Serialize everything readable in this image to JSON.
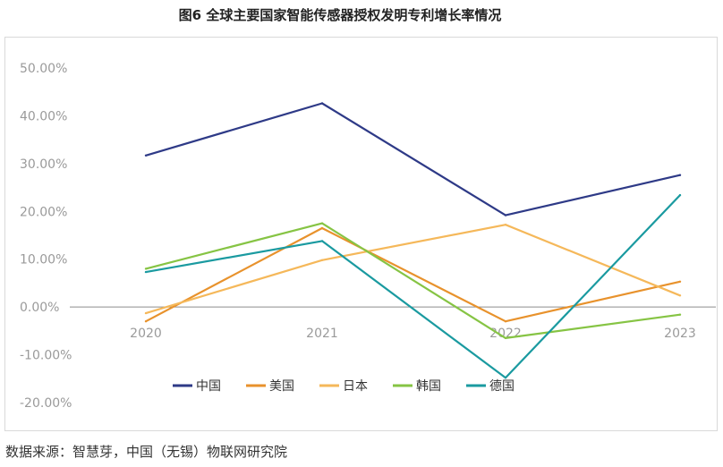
{
  "title": "图6 全球主要国家智能传感器授权发明专利增长率情况",
  "source": "数据来源：智慧芽，中国（无锡）物联网研究院",
  "chart_data": {
    "type": "line",
    "title": "图6 全球主要国家智能传感器授权发明专利增长率情况",
    "categories": [
      "2020",
      "2021",
      "2022",
      "2023"
    ],
    "ylim": [
      -20,
      50
    ],
    "y_ticks": [
      50,
      40,
      30,
      20,
      10,
      0,
      -10,
      -20
    ],
    "y_tick_labels": [
      "50.00%",
      "40.00%",
      "30.00%",
      "20.00%",
      "10.00%",
      "0.00%",
      "-10.00%",
      "-20.00%"
    ],
    "grid": false,
    "legend_position": "bottom",
    "series": [
      {
        "name": "中国",
        "color": "#2e3a87",
        "values": [
          31.7,
          42.6,
          19.2,
          27.6
        ]
      },
      {
        "name": "美国",
        "color": "#e8922c",
        "values": [
          -3.0,
          16.5,
          -3.0,
          5.3
        ]
      },
      {
        "name": "日本",
        "color": "#f5b85a",
        "values": [
          -1.3,
          9.8,
          17.2,
          2.4
        ]
      },
      {
        "name": "韩国",
        "color": "#86c444",
        "values": [
          8.0,
          17.5,
          -6.5,
          -1.6
        ]
      },
      {
        "name": "德国",
        "color": "#1a9aa0",
        "values": [
          7.3,
          13.8,
          -14.8,
          23.4
        ]
      }
    ]
  }
}
